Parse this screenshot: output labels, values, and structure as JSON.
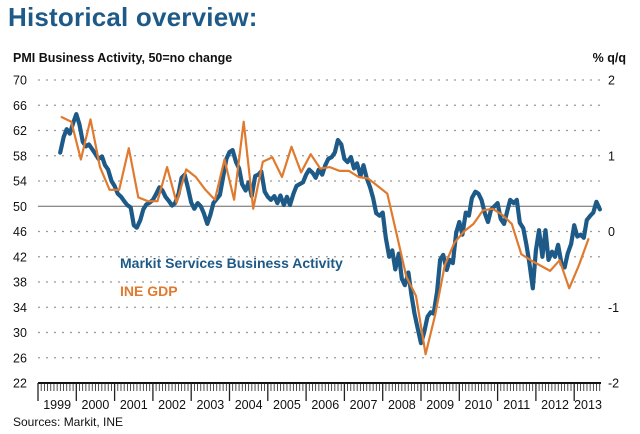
{
  "title": "Historical overview:",
  "subtitle": "PMI Business Activity, 50=no change",
  "right_axis_label": "% q/q",
  "source": "Sources: Markit, INE",
  "colors": {
    "pmi": "#1d5a87",
    "gdp": "#e07a2e",
    "title": "#1d5a87"
  },
  "chart_data": {
    "type": "line",
    "title": "Historical overview:",
    "ylabel": "PMI Business Activity, 50=no change",
    "y2label": "% q/q",
    "ylim": [
      22,
      70
    ],
    "y2lim": [
      -2,
      2
    ],
    "yticks": [
      70,
      66,
      62,
      58,
      54,
      50,
      46,
      42,
      38,
      34,
      30,
      26,
      22
    ],
    "y2ticks": [
      2,
      1,
      0,
      -1,
      -2
    ],
    "xlim": [
      1999.0,
      2013.7
    ],
    "xticks": [
      "1999",
      "2000",
      "2001",
      "2002",
      "2003",
      "2004",
      "2005",
      "2006",
      "2007",
      "2008",
      "2009",
      "2010",
      "2011",
      "2012",
      "2013"
    ],
    "reference_line": 50,
    "grid": "dotted horizontal",
    "legend": [
      {
        "label": "Markit Services Business Activity",
        "series": "pmi"
      },
      {
        "label": "INE GDP",
        "series": "gdp"
      }
    ],
    "series": [
      {
        "name": "Markit Services Business Activity",
        "key": "pmi",
        "axis": "left",
        "x": [
          1999.58,
          1999.67,
          1999.75,
          1999.83,
          1999.92,
          2000.0,
          2000.08,
          2000.17,
          2000.25,
          2000.33,
          2000.42,
          2000.5,
          2000.58,
          2000.67,
          2000.75,
          2000.83,
          2000.92,
          2001.0,
          2001.08,
          2001.17,
          2001.25,
          2001.33,
          2001.42,
          2001.5,
          2001.58,
          2001.67,
          2001.75,
          2001.83,
          2001.92,
          2002.0,
          2002.08,
          2002.17,
          2002.25,
          2002.33,
          2002.42,
          2002.5,
          2002.58,
          2002.67,
          2002.75,
          2002.83,
          2002.92,
          2003.0,
          2003.08,
          2003.17,
          2003.25,
          2003.33,
          2003.42,
          2003.5,
          2003.58,
          2003.67,
          2003.75,
          2003.83,
          2003.92,
          2004.0,
          2004.08,
          2004.17,
          2004.25,
          2004.33,
          2004.42,
          2004.5,
          2004.58,
          2004.67,
          2004.75,
          2004.83,
          2004.92,
          2005.0,
          2005.08,
          2005.17,
          2005.25,
          2005.33,
          2005.42,
          2005.5,
          2005.58,
          2005.67,
          2005.75,
          2005.83,
          2005.92,
          2006.0,
          2006.08,
          2006.17,
          2006.25,
          2006.33,
          2006.42,
          2006.5,
          2006.58,
          2006.67,
          2006.75,
          2006.83,
          2006.92,
          2007.0,
          2007.08,
          2007.17,
          2007.25,
          2007.33,
          2007.42,
          2007.5,
          2007.58,
          2007.67,
          2007.75,
          2007.83,
          2007.92,
          2008.0,
          2008.08,
          2008.17,
          2008.25,
          2008.33,
          2008.42,
          2008.5,
          2008.58,
          2008.67,
          2008.75,
          2008.83,
          2008.92,
          2009.0,
          2009.08,
          2009.17,
          2009.25,
          2009.33,
          2009.42,
          2009.5,
          2009.58,
          2009.67,
          2009.75,
          2009.83,
          2009.92,
          2010.0,
          2010.08,
          2010.17,
          2010.25,
          2010.33,
          2010.42,
          2010.5,
          2010.58,
          2010.67,
          2010.75,
          2010.83,
          2010.92,
          2011.0,
          2011.08,
          2011.17,
          2011.25,
          2011.33,
          2011.42,
          2011.5,
          2011.58,
          2011.67,
          2011.75,
          2011.83,
          2011.92,
          2012.0,
          2012.08,
          2012.17,
          2012.25,
          2012.33,
          2012.42,
          2012.5,
          2012.58,
          2012.67,
          2012.75,
          2012.83,
          2012.92,
          2013.0,
          2013.08,
          2013.17,
          2013.25,
          2013.33,
          2013.42,
          2013.5,
          2013.58,
          2013.67
        ],
        "values": [
          58.5,
          61.0,
          62.2,
          61.5,
          63.2,
          64.6,
          63.0,
          60.2,
          59.5,
          59.8,
          59.0,
          58.3,
          57.5,
          57.9,
          56.5,
          55.8,
          54.0,
          53.2,
          52.0,
          51.5,
          50.8,
          50.2,
          49.8,
          47.0,
          46.6,
          47.8,
          49.5,
          50.3,
          50.6,
          51.0,
          51.9,
          53.0,
          52.5,
          51.5,
          50.8,
          50.1,
          50.5,
          52.0,
          54.5,
          55.0,
          52.8,
          50.6,
          49.6,
          50.5,
          50.0,
          48.9,
          47.2,
          48.6,
          50.5,
          51.2,
          51.8,
          54.5,
          57.5,
          58.6,
          58.9,
          57.0,
          56.0,
          53.5,
          52.5,
          53.8,
          51.6,
          54.8,
          55.0,
          55.5,
          52.3,
          51.5,
          51.0,
          51.6,
          50.5,
          51.7,
          50.2,
          51.5,
          50.2,
          52.0,
          53.2,
          53.5,
          53.8,
          55.0,
          55.8,
          55.3,
          54.5,
          55.8,
          55.0,
          56.5,
          57.5,
          57.8,
          58.5,
          60.5,
          59.8,
          57.5,
          57.0,
          57.8,
          56.0,
          56.8,
          54.8,
          56.5,
          54.5,
          53.0,
          51.3,
          48.9,
          48.5,
          49.0,
          45.0,
          42.0,
          43.0,
          40.0,
          42.5,
          38.5,
          37.5,
          39.5,
          36.0,
          33.0,
          30.5,
          28.3,
          30.0,
          32.5,
          33.2,
          33.0,
          36.5,
          41.5,
          42.3,
          39.9,
          41.5,
          41.0,
          45.8,
          47.5,
          45.5,
          49.0,
          48.5,
          51.3,
          52.3,
          52.0,
          51.0,
          48.8,
          47.5,
          49.5,
          50.0,
          50.5,
          48.0,
          47.2,
          49.2,
          51.0,
          50.5,
          51.0,
          47.4,
          46.5,
          44.0,
          41.0,
          37.0,
          43.0,
          46.2,
          42.0,
          46.2,
          41.5,
          42.8,
          42.0,
          43.9,
          40.8,
          40.3,
          42.5,
          44.0,
          47.0,
          45.2,
          45.5,
          45.0,
          47.8,
          48.5,
          49.0,
          50.7,
          49.5
        ]
      },
      {
        "name": "INE GDP",
        "key": "gdp",
        "axis": "right",
        "unit": "% q/q",
        "x": [
          1999.62,
          1999.87,
          2000.12,
          2000.37,
          2000.62,
          2000.87,
          2001.12,
          2001.37,
          2001.62,
          2001.87,
          2002.12,
          2002.37,
          2002.62,
          2002.87,
          2003.12,
          2003.37,
          2003.62,
          2003.87,
          2004.12,
          2004.37,
          2004.62,
          2004.87,
          2005.12,
          2005.37,
          2005.62,
          2005.87,
          2006.12,
          2006.37,
          2006.62,
          2006.87,
          2007.12,
          2007.37,
          2007.62,
          2007.87,
          2008.12,
          2008.37,
          2008.62,
          2008.87,
          2009.12,
          2009.37,
          2009.62,
          2009.87,
          2010.12,
          2010.37,
          2010.62,
          2010.87,
          2011.12,
          2011.37,
          2011.62,
          2011.87,
          2012.12,
          2012.37,
          2012.62,
          2012.87,
          2013.12,
          2013.37
        ],
        "values": [
          1.51,
          1.45,
          0.95,
          1.48,
          0.85,
          0.55,
          0.55,
          1.1,
          0.45,
          0.4,
          0.4,
          0.85,
          0.38,
          0.82,
          0.72,
          0.55,
          0.42,
          0.95,
          0.42,
          1.45,
          0.3,
          0.92,
          0.98,
          0.72,
          1.12,
          0.78,
          1.02,
          0.83,
          0.85,
          0.8,
          0.8,
          0.72,
          0.7,
          0.6,
          0.5,
          -0.05,
          -0.6,
          -0.85,
          -1.62,
          -1.1,
          -0.45,
          -0.15,
          0.0,
          0.1,
          0.28,
          0.3,
          0.22,
          0.1,
          -0.3,
          -0.38,
          -0.45,
          -0.52,
          -0.38,
          -0.75,
          -0.45,
          -0.1
        ]
      }
    ]
  }
}
